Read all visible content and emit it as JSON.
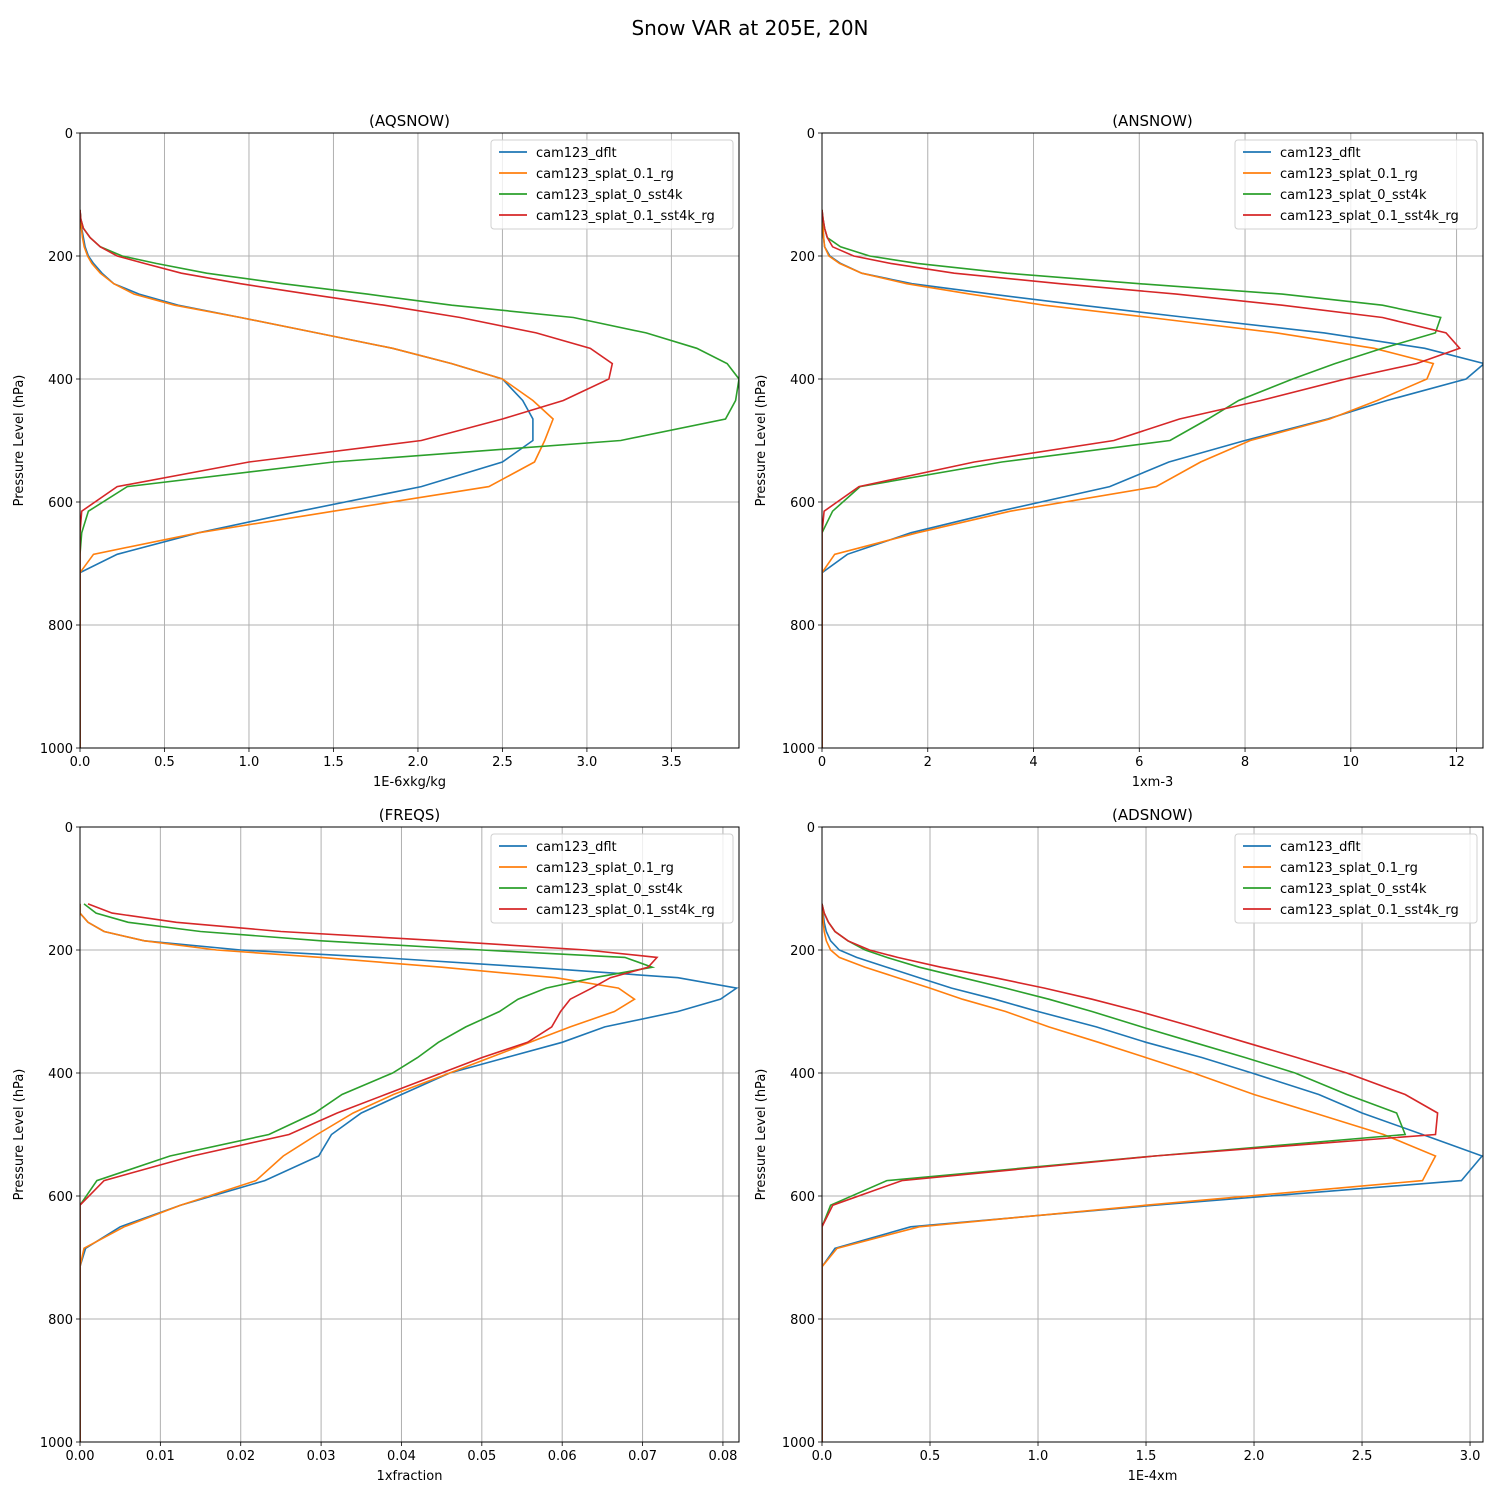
{
  "figure": {
    "title": "Snow VAR at 205E, 20N"
  },
  "colors": {
    "cam123_dflt": "#1f77b4",
    "cam123_splat_0.1_rg": "#ff7f0e",
    "cam123_splat_0_sst4k": "#2ca02c",
    "cam123_splat_0.1_sst4k_rg": "#d62728",
    "grid": "#b0b0b0"
  },
  "chart_data": [
    {
      "type": "line",
      "title": "(AQSNOW)",
      "xlabel": "1E-6xkg/kg",
      "ylabel": "Pressure Level (hPa)",
      "xlim": [
        0,
        3.9
      ],
      "ylim": [
        1000,
        0
      ],
      "xticks": [
        "0.0",
        "0.5",
        "1.0",
        "1.5",
        "2.0",
        "2.5",
        "3.0",
        "3.5"
      ],
      "xtick_values": [
        0,
        0.5,
        1,
        1.5,
        2,
        2.5,
        3,
        3.5
      ],
      "yticks": [
        0,
        200,
        400,
        600,
        800,
        1000
      ],
      "grid": true,
      "legend": "top-right",
      "y": [
        125,
        140,
        155,
        170,
        185,
        200,
        212,
        228,
        245,
        262,
        280,
        300,
        325,
        350,
        375,
        400,
        435,
        465,
        500,
        535,
        575,
        615,
        650,
        685,
        715,
        800,
        900,
        1000
      ],
      "series": [
        {
          "name": "cam123_dflt",
          "values": [
            0,
            0.005,
            0.01,
            0.02,
            0.03,
            0.05,
            0.08,
            0.13,
            0.2,
            0.35,
            0.58,
            0.95,
            1.4,
            1.85,
            2.2,
            2.5,
            2.62,
            2.68,
            2.68,
            2.5,
            2.02,
            1.3,
            0.7,
            0.22,
            0,
            0,
            0,
            0
          ]
        },
        {
          "name": "cam123_splat_0.1_rg",
          "values": [
            0,
            0.003,
            0.008,
            0.015,
            0.025,
            0.045,
            0.07,
            0.12,
            0.2,
            0.32,
            0.56,
            0.95,
            1.4,
            1.85,
            2.2,
            2.5,
            2.68,
            2.8,
            2.75,
            2.69,
            2.42,
            1.5,
            0.7,
            0.08,
            0,
            0,
            0,
            0
          ]
        },
        {
          "name": "cam123_splat_0_sst4k",
          "values": [
            0,
            0.005,
            0.02,
            0.06,
            0.12,
            0.25,
            0.45,
            0.75,
            1.2,
            1.7,
            2.2,
            2.92,
            3.35,
            3.65,
            3.83,
            3.9,
            3.88,
            3.82,
            3.2,
            1.5,
            0.28,
            0.05,
            0.01,
            0,
            0,
            0,
            0,
            0
          ]
        },
        {
          "name": "cam123_splat_0.1_sst4k_rg",
          "values": [
            0,
            0.005,
            0.02,
            0.06,
            0.12,
            0.22,
            0.38,
            0.6,
            0.95,
            1.35,
            1.8,
            2.25,
            2.7,
            3.02,
            3.15,
            3.13,
            2.86,
            2.5,
            2.02,
            1.0,
            0.22,
            0.01,
            0,
            0,
            0,
            0,
            0,
            0
          ]
        }
      ]
    },
    {
      "type": "line",
      "title": "(ANSNOW)",
      "xlabel": "1xm-3",
      "ylabel": "Pressure Level (hPa)",
      "xlim": [
        0,
        12.5
      ],
      "ylim": [
        1000,
        0
      ],
      "xticks": [
        "0",
        "2",
        "4",
        "6",
        "8",
        "10",
        "12"
      ],
      "xtick_values": [
        0,
        2,
        4,
        6,
        8,
        10,
        12
      ],
      "yticks": [
        0,
        200,
        400,
        600,
        800,
        1000
      ],
      "grid": true,
      "legend": "top-right",
      "y": [
        125,
        140,
        155,
        170,
        185,
        200,
        212,
        228,
        245,
        262,
        280,
        300,
        325,
        350,
        375,
        400,
        435,
        465,
        500,
        535,
        575,
        615,
        650,
        685,
        715,
        800,
        900,
        1000
      ],
      "series": [
        {
          "name": "cam123_dflt",
          "values": [
            0,
            0.01,
            0.02,
            0.03,
            0.05,
            0.15,
            0.35,
            0.75,
            1.7,
            3.2,
            4.9,
            6.9,
            9.5,
            11.4,
            12.52,
            12.18,
            10.68,
            9.56,
            8.0,
            6.56,
            5.44,
            3.36,
            1.68,
            0.48,
            0,
            0,
            0,
            0
          ]
        },
        {
          "name": "cam123_splat_0.1_rg",
          "values": [
            0,
            0.01,
            0.02,
            0.03,
            0.05,
            0.13,
            0.33,
            0.75,
            1.6,
            2.8,
            4.2,
            6.2,
            8.6,
            10.44,
            11.56,
            11.44,
            10.5,
            9.6,
            8.1,
            7.16,
            6.32,
            3.56,
            1.8,
            0.24,
            0,
            0,
            0,
            0
          ]
        },
        {
          "name": "cam123_splat_0_sst4k",
          "values": [
            0,
            0.02,
            0.05,
            0.1,
            0.35,
            0.9,
            1.8,
            3.5,
            6.0,
            8.7,
            10.6,
            11.7,
            11.6,
            10.6,
            9.7,
            8.9,
            7.88,
            7.3,
            6.58,
            3.4,
            0.72,
            0.2,
            0,
            0,
            0,
            0,
            0,
            0
          ]
        },
        {
          "name": "cam123_splat_0.1_sst4k_rg",
          "values": [
            0,
            0.02,
            0.05,
            0.1,
            0.2,
            0.6,
            1.3,
            2.5,
            4.5,
            6.7,
            8.7,
            10.6,
            11.8,
            12.06,
            11.24,
            9.9,
            8.3,
            6.76,
            5.52,
            2.88,
            0.7,
            0.04,
            0,
            0,
            0,
            0,
            0,
            0
          ]
        }
      ]
    },
    {
      "type": "line",
      "title": "(FREQS)",
      "xlabel": "1xfraction",
      "ylabel": "Pressure Level (hPa)",
      "xlim": [
        0,
        0.082
      ],
      "ylim": [
        1000,
        0
      ],
      "xticks": [
        "0.00",
        "0.01",
        "0.02",
        "0.03",
        "0.04",
        "0.05",
        "0.06",
        "0.07",
        "0.08"
      ],
      "xtick_values": [
        0,
        0.01,
        0.02,
        0.03,
        0.04,
        0.05,
        0.06,
        0.07,
        0.08
      ],
      "yticks": [
        0,
        200,
        400,
        600,
        800,
        1000
      ],
      "grid": true,
      "legend": "top-right",
      "y": [
        125,
        140,
        155,
        170,
        185,
        200,
        212,
        228,
        245,
        262,
        280,
        300,
        325,
        350,
        375,
        400,
        435,
        465,
        500,
        535,
        575,
        615,
        650,
        685,
        715,
        800,
        900,
        1000
      ],
      "series": [
        {
          "name": "cam123_dflt",
          "values": [
            0,
            0,
            0.001,
            0.003,
            0.008,
            0.02,
            0.037,
            0.056,
            0.0744,
            0.0817,
            0.0797,
            0.0744,
            0.0653,
            0.06,
            0.053,
            0.046,
            0.04,
            0.035,
            0.0313,
            0.0297,
            0.023,
            0.0125,
            0.005,
            0.0007,
            0,
            0,
            0,
            0
          ]
        },
        {
          "name": "cam123_splat_0.1_rg",
          "values": [
            0,
            0,
            0.001,
            0.003,
            0.008,
            0.017,
            0.03,
            0.045,
            0.0592,
            0.067,
            0.069,
            0.0665,
            0.061,
            0.056,
            0.051,
            0.046,
            0.039,
            0.034,
            0.0295,
            0.0253,
            0.0219,
            0.0125,
            0.0055,
            0.0005,
            0,
            0,
            0,
            0
          ]
        },
        {
          "name": "cam123_splat_0_sst4k",
          "values": [
            0.0005,
            0.002,
            0.006,
            0.015,
            0.03,
            0.05,
            0.0678,
            0.0712,
            0.064,
            0.058,
            0.0545,
            0.0522,
            0.048,
            0.0446,
            0.042,
            0.0389,
            0.0326,
            0.0292,
            0.0235,
            0.0112,
            0.0021,
            0,
            0,
            0,
            0,
            0,
            0,
            0
          ]
        },
        {
          "name": "cam123_splat_0.1_sst4k_rg",
          "values": [
            0.001,
            0.004,
            0.012,
            0.025,
            0.045,
            0.063,
            0.0718,
            0.0707,
            0.066,
            0.0637,
            0.061,
            0.0598,
            0.0587,
            0.0557,
            0.05,
            0.045,
            0.038,
            0.032,
            0.026,
            0.014,
            0.003,
            0,
            0,
            0,
            0,
            0,
            0,
            0
          ]
        }
      ]
    },
    {
      "type": "line",
      "title": "(ADSNOW)",
      "xlabel": "1E-4xm",
      "ylabel": "Pressure Level (hPa)",
      "xlim": [
        0,
        3.06
      ],
      "ylim": [
        1000,
        0
      ],
      "xticks": [
        "0.0",
        "0.5",
        "1.0",
        "1.5",
        "2.0",
        "2.5",
        "3.0"
      ],
      "xtick_values": [
        0,
        0.5,
        1,
        1.5,
        2,
        2.5,
        3
      ],
      "yticks": [
        0,
        200,
        400,
        600,
        800,
        1000
      ],
      "grid": true,
      "legend": "top-right",
      "y": [
        125,
        140,
        155,
        170,
        185,
        200,
        212,
        228,
        245,
        262,
        280,
        300,
        325,
        350,
        375,
        400,
        435,
        465,
        500,
        535,
        575,
        615,
        650,
        685,
        715,
        800,
        900,
        1000
      ],
      "series": [
        {
          "name": "cam123_dflt",
          "values": [
            0,
            0.005,
            0.01,
            0.02,
            0.04,
            0.08,
            0.16,
            0.3,
            0.45,
            0.6,
            0.8,
            1.0,
            1.27,
            1.5,
            1.76,
            1.99,
            2.3,
            2.5,
            2.78,
            3.056,
            2.96,
            1.54,
            0.41,
            0.06,
            0,
            0,
            0,
            0
          ]
        },
        {
          "name": "cam123_splat_0.1_rg",
          "values": [
            0,
            0.003,
            0.006,
            0.01,
            0.02,
            0.04,
            0.08,
            0.2,
            0.35,
            0.5,
            0.65,
            0.85,
            1.05,
            1.28,
            1.5,
            1.72,
            2.0,
            2.28,
            2.6,
            2.84,
            2.78,
            1.5,
            0.45,
            0.07,
            0,
            0,
            0,
            0
          ]
        },
        {
          "name": "cam123_splat_0_sst4k",
          "values": [
            0,
            0.01,
            0.03,
            0.06,
            0.12,
            0.2,
            0.3,
            0.45,
            0.65,
            0.85,
            1.05,
            1.25,
            1.48,
            1.72,
            1.96,
            2.19,
            2.43,
            2.66,
            2.7,
            1.54,
            0.3,
            0.04,
            0,
            0,
            0,
            0,
            0,
            0
          ]
        },
        {
          "name": "cam123_splat_0.1_sst4k_rg",
          "values": [
            0,
            0.01,
            0.03,
            0.06,
            0.12,
            0.22,
            0.35,
            0.55,
            0.8,
            1.03,
            1.25,
            1.47,
            1.72,
            1.96,
            2.2,
            2.43,
            2.7,
            2.85,
            2.84,
            1.54,
            0.37,
            0.05,
            0,
            0,
            0,
            0,
            0,
            0
          ]
        }
      ]
    }
  ]
}
